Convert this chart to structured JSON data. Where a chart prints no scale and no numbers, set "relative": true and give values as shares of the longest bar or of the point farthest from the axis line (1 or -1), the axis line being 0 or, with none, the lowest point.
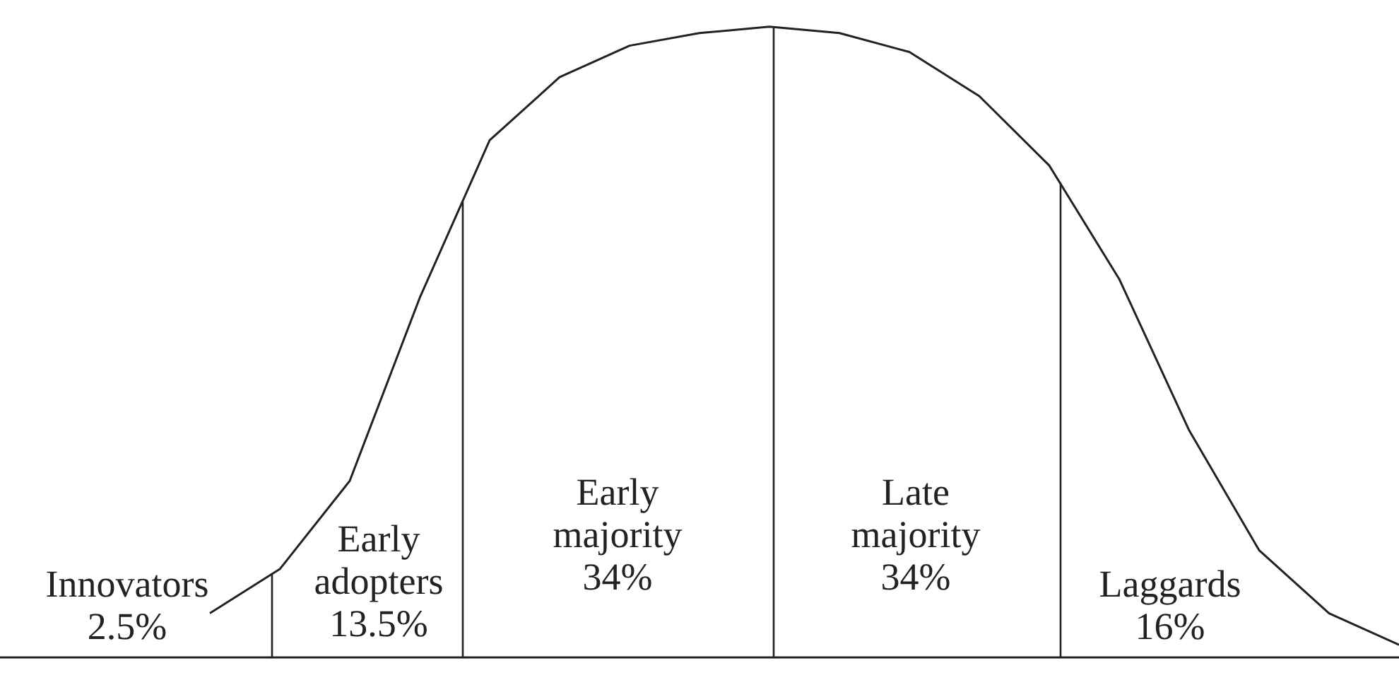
{
  "chart_data": {
    "type": "line",
    "relative": true,
    "tick_labels": false,
    "grid": false,
    "marker": "none",
    "line_style": "solid",
    "categories": [
      null,
      null,
      null,
      null,
      null,
      null,
      null,
      null,
      null,
      null,
      null,
      null,
      null,
      null,
      null,
      null,
      null,
      null,
      null,
      null,
      null
    ],
    "series": [
      {
        "color": "#222222",
        "values": [
          null,
          null,
          null,
          0.07,
          0.14,
          0.28,
          0.57,
          0.82,
          0.92,
          0.97,
          0.99,
          1,
          0.99,
          0.96,
          0.89,
          0.78,
          0.6,
          0.36,
          0.17,
          0.07,
          0.02
        ]
      }
    ],
    "annotations": [
      "Innovators\n2.5%",
      "Early\nadopters\n13.5%",
      "Early\nmajority\n34%",
      "Late\nmajority\n34%",
      "Laggards\n16%"
    ]
  }
}
